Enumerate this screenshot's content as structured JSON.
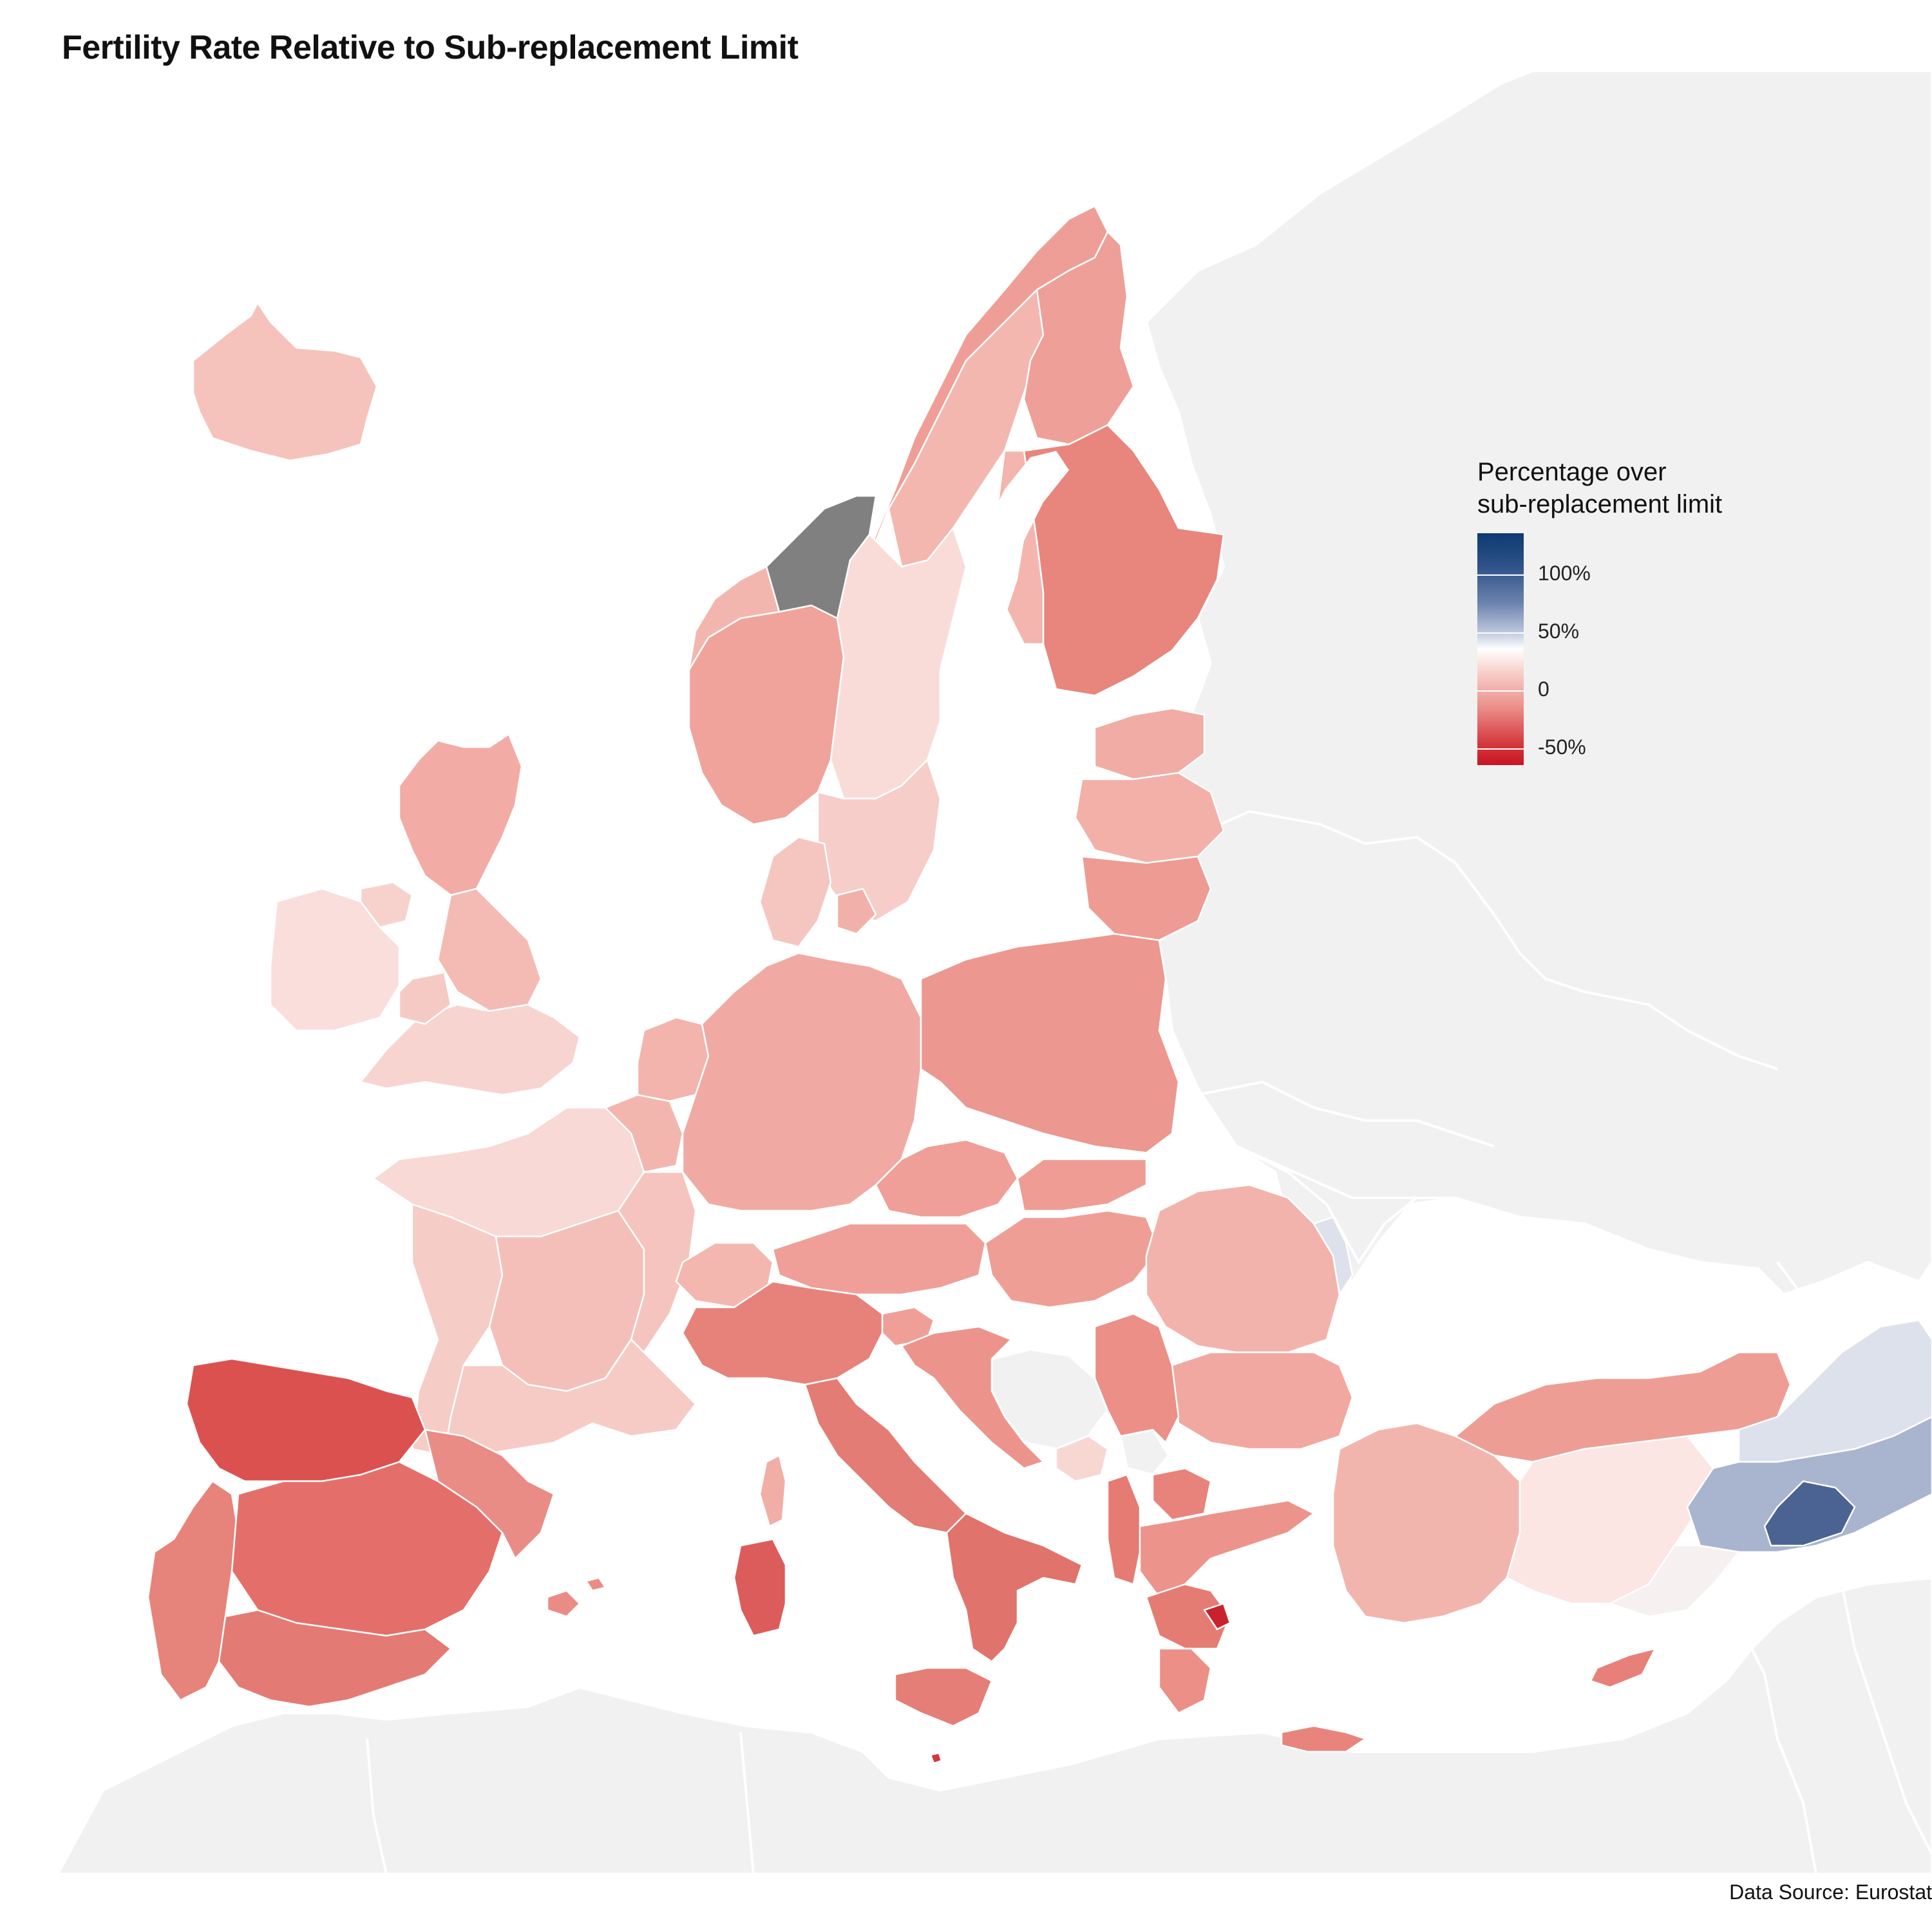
{
  "title": "Fertility Rate Relative to Sub-replacement Limit",
  "legend": {
    "title_line1": "Percentage over",
    "title_line2": "sub-replacement limit",
    "ticks": [
      "100%",
      "50%",
      "0",
      "-50%"
    ],
    "colors": {
      "high": "#0d3a73",
      "mid_blue": "#6b82ae",
      "zero": "#ffffff",
      "low_red": "#eb8f8a",
      "very_low": "#c81422"
    }
  },
  "source": "Data Source: Eurostat",
  "map_colors": {
    "background_land": "#f1f1f1",
    "sea": "#ffffff",
    "no_data": "#808080"
  },
  "regions": [
    {
      "name": "Iceland",
      "value": -20
    },
    {
      "name": "Norway",
      "value": -25
    },
    {
      "name": "Norway (Trøndelag)",
      "value": null
    },
    {
      "name": "Sweden",
      "value": -15
    },
    {
      "name": "Finland",
      "value": -35
    },
    {
      "name": "Estonia",
      "value": -25
    },
    {
      "name": "Latvia",
      "value": -25
    },
    {
      "name": "Lithuania",
      "value": -28
    },
    {
      "name": "Denmark",
      "value": -18
    },
    {
      "name": "Scotland",
      "value": -30
    },
    {
      "name": "Northern Ireland",
      "value": -12
    },
    {
      "name": "Ireland",
      "value": -10
    },
    {
      "name": "England & Wales",
      "value": -15
    },
    {
      "name": "Netherlands",
      "value": -22
    },
    {
      "name": "Belgium",
      "value": -18
    },
    {
      "name": "France",
      "value": -10
    },
    {
      "name": "Germany",
      "value": -30
    },
    {
      "name": "Poland",
      "value": -35
    },
    {
      "name": "Czechia",
      "value": -28
    },
    {
      "name": "Slovakia",
      "value": -30
    },
    {
      "name": "Austria",
      "value": -30
    },
    {
      "name": "Switzerland",
      "value": -28
    },
    {
      "name": "Hungary",
      "value": -28
    },
    {
      "name": "Romania",
      "value": -25
    },
    {
      "name": "Moldova",
      "value": 5
    },
    {
      "name": "Bulgaria",
      "value": -25
    },
    {
      "name": "Serbia",
      "value": -32
    },
    {
      "name": "Croatia",
      "value": -35
    },
    {
      "name": "Slovenia",
      "value": -30
    },
    {
      "name": "Montenegro",
      "value": -20
    },
    {
      "name": "North Macedonia",
      "value": -35
    },
    {
      "name": "Albania",
      "value": -35
    },
    {
      "name": "Greece",
      "value": -40
    },
    {
      "name": "Italy",
      "value": -42
    },
    {
      "name": "Corsica",
      "value": -30
    },
    {
      "name": "Sardinia",
      "value": -50
    },
    {
      "name": "Sicily",
      "value": -35
    },
    {
      "name": "Portugal",
      "value": -40
    },
    {
      "name": "Spain",
      "value": -45
    },
    {
      "name": "Balearic Islands",
      "value": -40
    },
    {
      "name": "Malta",
      "value": -48
    },
    {
      "name": "Cyprus",
      "value": -35
    },
    {
      "name": "Crete",
      "value": -35
    },
    {
      "name": "Western Turkey",
      "value": -25
    },
    {
      "name": "Central Turkey",
      "value": -8
    },
    {
      "name": "Eastern Turkey",
      "value": 45
    },
    {
      "name": "South-eastern Turkey",
      "value": 100
    }
  ]
}
